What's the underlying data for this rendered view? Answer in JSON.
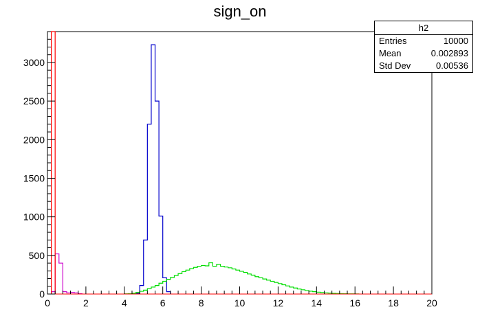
{
  "title": "sign_on",
  "stats": {
    "name": "h2",
    "rows": [
      {
        "label": "Entries",
        "value": "10000"
      },
      {
        "label": "Mean",
        "value": "0.002893"
      },
      {
        "label": "Std Dev",
        "value": "0.00536"
      }
    ]
  },
  "chart_data": {
    "type": "histogram",
    "xlim": [
      0,
      20
    ],
    "ylim": [
      0,
      3400
    ],
    "x_ticks": [
      0,
      2,
      4,
      6,
      8,
      10,
      12,
      14,
      16,
      18,
      20
    ],
    "y_ticks": [
      0,
      500,
      1000,
      1500,
      2000,
      2500,
      3000
    ],
    "bin_width": 0.2,
    "colors": {
      "blue": "#0000cc",
      "green": "#00dd00",
      "magenta": "#cc00cc",
      "red": "#ff0000"
    },
    "series": [
      {
        "color": "blue",
        "bins": [
          {
            "x": 4.6,
            "v": 10
          },
          {
            "x": 4.8,
            "v": 110
          },
          {
            "x": 5.0,
            "v": 700
          },
          {
            "x": 5.2,
            "v": 2200
          },
          {
            "x": 5.4,
            "v": 3230
          },
          {
            "x": 5.6,
            "v": 2500
          },
          {
            "x": 5.8,
            "v": 1010
          },
          {
            "x": 6.0,
            "v": 210
          },
          {
            "x": 6.2,
            "v": 30
          }
        ]
      },
      {
        "color": "green",
        "bins": [
          {
            "x": 4.0,
            "v": 2
          },
          {
            "x": 4.2,
            "v": 5
          },
          {
            "x": 4.4,
            "v": 10
          },
          {
            "x": 4.6,
            "v": 20
          },
          {
            "x": 4.8,
            "v": 35
          },
          {
            "x": 5.0,
            "v": 50
          },
          {
            "x": 5.2,
            "v": 70
          },
          {
            "x": 5.4,
            "v": 90
          },
          {
            "x": 5.6,
            "v": 110
          },
          {
            "x": 5.8,
            "v": 140
          },
          {
            "x": 6.0,
            "v": 165
          },
          {
            "x": 6.2,
            "v": 190
          },
          {
            "x": 6.4,
            "v": 215
          },
          {
            "x": 6.6,
            "v": 240
          },
          {
            "x": 6.8,
            "v": 265
          },
          {
            "x": 7.0,
            "v": 290
          },
          {
            "x": 7.2,
            "v": 310
          },
          {
            "x": 7.4,
            "v": 330
          },
          {
            "x": 7.6,
            "v": 345
          },
          {
            "x": 7.8,
            "v": 360
          },
          {
            "x": 8.0,
            "v": 370
          },
          {
            "x": 8.2,
            "v": 365
          },
          {
            "x": 8.4,
            "v": 405
          },
          {
            "x": 8.6,
            "v": 360
          },
          {
            "x": 8.8,
            "v": 385
          },
          {
            "x": 9.0,
            "v": 360
          },
          {
            "x": 9.2,
            "v": 350
          },
          {
            "x": 9.4,
            "v": 340
          },
          {
            "x": 9.6,
            "v": 325
          },
          {
            "x": 9.8,
            "v": 310
          },
          {
            "x": 10.0,
            "v": 295
          },
          {
            "x": 10.2,
            "v": 280
          },
          {
            "x": 10.4,
            "v": 260
          },
          {
            "x": 10.6,
            "v": 245
          },
          {
            "x": 10.8,
            "v": 225
          },
          {
            "x": 11.0,
            "v": 210
          },
          {
            "x": 11.2,
            "v": 195
          },
          {
            "x": 11.4,
            "v": 180
          },
          {
            "x": 11.6,
            "v": 165
          },
          {
            "x": 11.8,
            "v": 150
          },
          {
            "x": 12.0,
            "v": 135
          },
          {
            "x": 12.2,
            "v": 120
          },
          {
            "x": 12.4,
            "v": 105
          },
          {
            "x": 12.6,
            "v": 90
          },
          {
            "x": 12.8,
            "v": 78
          },
          {
            "x": 13.0,
            "v": 65
          },
          {
            "x": 13.2,
            "v": 55
          },
          {
            "x": 13.4,
            "v": 45
          },
          {
            "x": 13.6,
            "v": 37
          },
          {
            "x": 13.8,
            "v": 30
          },
          {
            "x": 14.0,
            "v": 24
          },
          {
            "x": 14.2,
            "v": 19
          },
          {
            "x": 14.4,
            "v": 15
          },
          {
            "x": 14.6,
            "v": 12
          },
          {
            "x": 14.8,
            "v": 9
          },
          {
            "x": 15.0,
            "v": 7
          },
          {
            "x": 15.2,
            "v": 5
          },
          {
            "x": 15.4,
            "v": 4
          },
          {
            "x": 15.6,
            "v": 3
          },
          {
            "x": 15.8,
            "v": 2
          },
          {
            "x": 16.0,
            "v": 1
          }
        ]
      },
      {
        "color": "magenta",
        "bins": [
          {
            "x": 0.2,
            "v": 30
          },
          {
            "x": 0.4,
            "v": 520
          },
          {
            "x": 0.6,
            "v": 400
          },
          {
            "x": 0.8,
            "v": 30
          },
          {
            "x": 1.0,
            "v": 15
          },
          {
            "x": 1.2,
            "v": 20
          },
          {
            "x": 1.4,
            "v": 15
          },
          {
            "x": 1.6,
            "v": 5
          }
        ]
      },
      {
        "color": "red",
        "bins": [
          {
            "x": 0.2,
            "v": 3400
          }
        ]
      }
    ]
  }
}
